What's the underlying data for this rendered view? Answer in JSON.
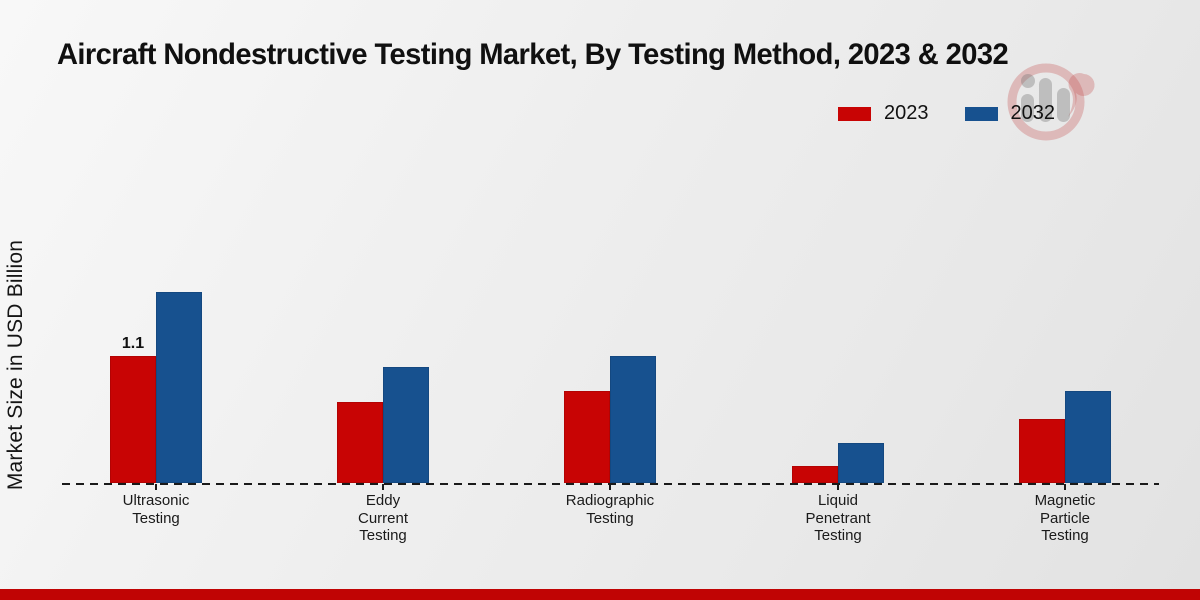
{
  "page": {
    "title": "Aircraft Nondestructive Testing Market, By Testing Method, 2023 & 2032"
  },
  "y_axis_label": "Market Size in USD Billion",
  "legend": {
    "items": [
      {
        "label": "2023",
        "color": "#c80404"
      },
      {
        "label": "2032",
        "color": "#17518f"
      }
    ]
  },
  "chart_data": {
    "type": "bar",
    "title": "Aircraft Nondestructive Testing Market, By Testing Method, 2023 & 2032",
    "xlabel": "",
    "ylabel": "Market Size in USD Billion",
    "categories": [
      "Ultrasonic\nTesting",
      "Eddy\nCurrent\nTesting",
      "Radiographic\nTesting",
      "Liquid\nPenetrant\nTesting",
      "Magnetic\nParticle\nTesting"
    ],
    "series": [
      {
        "name": "2023",
        "color": "#c80404",
        "values": [
          1.1,
          0.7,
          0.8,
          0.15,
          0.55
        ]
      },
      {
        "name": "2032",
        "color": "#17518f",
        "values": [
          1.65,
          1.0,
          1.1,
          0.35,
          0.8
        ]
      }
    ],
    "annotations": [
      {
        "series_index": 0,
        "category_index": 0,
        "text": "1.1"
      }
    ],
    "ylim": [
      0,
      1.8
    ],
    "grid": false,
    "baseline_style": "dashed",
    "legend_position": "top-right"
  },
  "footer": {
    "accent_color": "#c00404"
  },
  "watermark": {
    "name": "market-research-logo-watermark",
    "ring_color": "rgba(197,77,77,0.30)",
    "glyph_color": "rgba(120,120,120,0.38)"
  }
}
